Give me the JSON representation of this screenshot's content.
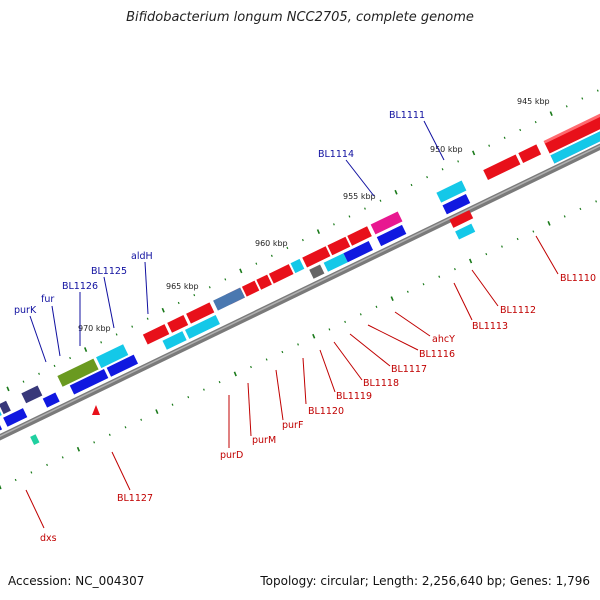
{
  "title": "Bifidobacterium longum NCC2705, complete genome",
  "footer": {
    "accession": "Accession: NC_004307",
    "summary": "Topology: circular; Length: 2,256,640 bp; Genes: 1,796"
  },
  "ticks": [
    "945 kbp",
    "950 kbp",
    "955 kbp",
    "960 kbp",
    "965 kbp",
    "970 kbp"
  ],
  "labels_top": [
    "purK",
    "fur",
    "BL1126",
    "BL1125",
    "aldH",
    "BL1114",
    "BL1111"
  ],
  "labels_bottom": [
    "dxs",
    "BL1127",
    "purD",
    "purM",
    "purF",
    "BL1120",
    "BL1119",
    "BL1118",
    "BL1117",
    "BL1116",
    "ahcY",
    "BL1113",
    "BL1112",
    "BL1110"
  ],
  "colors": {
    "red": "#e8101a",
    "cyan": "#14c8e8",
    "blue": "#1018e0",
    "olive": "#6a9a20",
    "magenta": "#e81890",
    "steel": "#4a78b0",
    "purple": "#6a58c8",
    "navy": "#38387a",
    "green_tick": "#1a7a1a"
  }
}
